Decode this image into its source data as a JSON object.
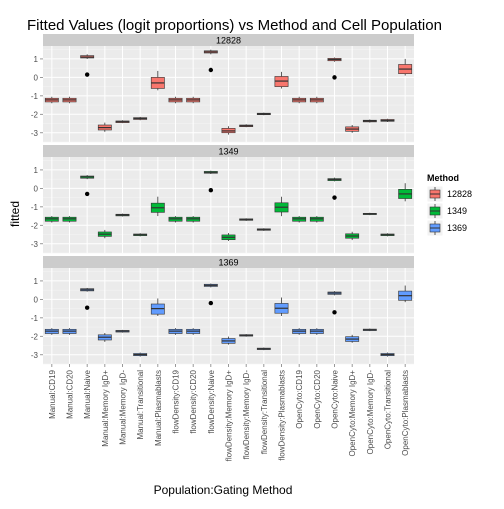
{
  "chart_data": {
    "type": "boxplot",
    "title": "Fitted Values (logit proportions) vs Method and Cell Population",
    "xlabel": "Population:Gating Method",
    "ylabel": "fitted",
    "ylim": [
      -3.5,
      1.7
    ],
    "yticks": [
      -3,
      -2,
      -1,
      0,
      1
    ],
    "grid": true,
    "legend_position": "right",
    "legend_title": "Method",
    "legend": [
      {
        "name": "12828",
        "color": "#F8766D"
      },
      {
        "name": "1349",
        "color": "#00BA38"
      },
      {
        "name": "1369",
        "color": "#619CFF"
      }
    ],
    "categories": [
      "Manual:CD19",
      "Manual:CD20",
      "Manual:Naive",
      "Manual:Memory IgD+",
      "Manual:Memory IgD-",
      "Manual:Transitional",
      "Manual:Plasmablasts",
      "flowDensity:CD19",
      "flowDensity:CD20",
      "flowDensity:Naive",
      "flowDensity:Memory IgD+",
      "flowDensity:Memory IgD-",
      "flowDensity:Transitional",
      "flowDensity:Plasmablasts",
      "OpenCyto:CD19",
      "OpenCyto:CD20",
      "OpenCyto:Naive",
      "OpenCyto:Memory IgD+",
      "OpenCyto:Memory IgD-",
      "OpenCyto:Transitional",
      "OpenCyto:Plasmablasts"
    ],
    "panels": [
      {
        "name": "12828",
        "boxes": [
          {
            "lo": -1.4,
            "q1": -1.33,
            "med": -1.22,
            "q3": -1.13,
            "hi": -1.05
          },
          {
            "lo": -1.4,
            "q1": -1.33,
            "med": -1.22,
            "q3": -1.13,
            "hi": -1.05
          },
          {
            "lo": 1.0,
            "q1": 1.05,
            "med": 1.1,
            "q3": 1.18,
            "hi": 1.25
          },
          {
            "lo": -2.95,
            "q1": -2.85,
            "med": -2.72,
            "q3": -2.58,
            "hi": -2.45
          },
          {
            "lo": -2.48,
            "q1": -2.45,
            "med": -2.4,
            "q3": -2.36,
            "hi": -2.32
          },
          {
            "lo": -2.32,
            "q1": -2.28,
            "med": -2.23,
            "q3": -2.18,
            "hi": -2.14
          },
          {
            "lo": -0.7,
            "q1": -0.6,
            "med": -0.3,
            "q3": 0.0,
            "hi": 0.35
          },
          {
            "lo": -1.4,
            "q1": -1.33,
            "med": -1.22,
            "q3": -1.13,
            "hi": -1.05
          },
          {
            "lo": -1.4,
            "q1": -1.33,
            "med": -1.22,
            "q3": -1.13,
            "hi": -1.05
          },
          {
            "lo": 1.25,
            "q1": 1.32,
            "med": 1.38,
            "q3": 1.44,
            "hi": 1.5
          },
          {
            "lo": -3.1,
            "q1": -3.0,
            "med": -2.9,
            "q3": -2.76,
            "hi": -2.65
          },
          {
            "lo": -2.7,
            "q1": -2.67,
            "med": -2.62,
            "q3": -2.58,
            "hi": -2.54
          },
          {
            "lo": -2.05,
            "q1": -2.02,
            "med": -1.98,
            "q3": -1.94,
            "hi": -1.91
          },
          {
            "lo": -0.6,
            "q1": -0.5,
            "med": -0.2,
            "q3": 0.05,
            "hi": 0.3
          },
          {
            "lo": -1.4,
            "q1": -1.33,
            "med": -1.22,
            "q3": -1.13,
            "hi": -1.05
          },
          {
            "lo": -1.4,
            "q1": -1.33,
            "med": -1.22,
            "q3": -1.13,
            "hi": -1.05
          },
          {
            "lo": 0.85,
            "q1": 0.9,
            "med": 0.97,
            "q3": 1.03,
            "hi": 1.08
          },
          {
            "lo": -3.0,
            "q1": -2.92,
            "med": -2.8,
            "q3": -2.68,
            "hi": -2.58
          },
          {
            "lo": -2.45,
            "q1": -2.41,
            "med": -2.36,
            "q3": -2.32,
            "hi": -2.28
          },
          {
            "lo": -2.42,
            "q1": -2.38,
            "med": -2.33,
            "q3": -2.28,
            "hi": -2.24
          },
          {
            "lo": 0.1,
            "q1": 0.2,
            "med": 0.45,
            "q3": 0.7,
            "hi": 1.0
          }
        ],
        "points": [
          {
            "cat": 3,
            "y": 0.15
          },
          {
            "cat": 10,
            "y": 0.4
          },
          {
            "cat": 17,
            "y": 0.0
          }
        ]
      },
      {
        "name": "1349",
        "boxes": [
          {
            "lo": -1.85,
            "q1": -1.78,
            "med": -1.65,
            "q3": -1.56,
            "hi": -1.5
          },
          {
            "lo": -1.85,
            "q1": -1.78,
            "med": -1.65,
            "q3": -1.56,
            "hi": -1.5
          },
          {
            "lo": 0.5,
            "q1": 0.55,
            "med": 0.62,
            "q3": 0.67,
            "hi": 0.72
          },
          {
            "lo": -2.7,
            "q1": -2.6,
            "med": -2.48,
            "q3": -2.36,
            "hi": -2.25
          },
          {
            "lo": -1.52,
            "q1": -1.49,
            "med": -1.44,
            "q3": -1.4,
            "hi": -1.37
          },
          {
            "lo": -2.6,
            "q1": -2.56,
            "med": -2.51,
            "q3": -2.47,
            "hi": -2.43
          },
          {
            "lo": -1.5,
            "q1": -1.3,
            "med": -1.05,
            "q3": -0.8,
            "hi": -0.45
          },
          {
            "lo": -1.85,
            "q1": -1.78,
            "med": -1.65,
            "q3": -1.56,
            "hi": -1.5
          },
          {
            "lo": -1.85,
            "q1": -1.78,
            "med": -1.65,
            "q3": -1.56,
            "hi": -1.5
          },
          {
            "lo": 0.78,
            "q1": 0.82,
            "med": 0.87,
            "q3": 0.92,
            "hi": 0.96
          },
          {
            "lo": -2.85,
            "q1": -2.78,
            "med": -2.65,
            "q3": -2.52,
            "hi": -2.42
          },
          {
            "lo": -1.76,
            "q1": -1.73,
            "med": -1.69,
            "q3": -1.65,
            "hi": -1.62
          },
          {
            "lo": -2.3,
            "q1": -2.27,
            "med": -2.23,
            "q3": -2.19,
            "hi": -2.16
          },
          {
            "lo": -1.5,
            "q1": -1.28,
            "med": -1.02,
            "q3": -0.78,
            "hi": -0.45
          },
          {
            "lo": -1.85,
            "q1": -1.78,
            "med": -1.65,
            "q3": -1.56,
            "hi": -1.5
          },
          {
            "lo": -1.85,
            "q1": -1.78,
            "med": -1.65,
            "q3": -1.56,
            "hi": -1.5
          },
          {
            "lo": 0.38,
            "q1": 0.42,
            "med": 0.48,
            "q3": 0.53,
            "hi": 0.58
          },
          {
            "lo": -2.8,
            "q1": -2.7,
            "med": -2.58,
            "q3": -2.46,
            "hi": -2.35
          },
          {
            "lo": -1.45,
            "q1": -1.42,
            "med": -1.38,
            "q3": -1.35,
            "hi": -1.32
          },
          {
            "lo": -2.6,
            "q1": -2.56,
            "med": -2.51,
            "q3": -2.47,
            "hi": -2.43
          },
          {
            "lo": -0.7,
            "q1": -0.55,
            "med": -0.3,
            "q3": -0.05,
            "hi": 0.28
          }
        ],
        "points": [
          {
            "cat": 3,
            "y": -0.3
          },
          {
            "cat": 10,
            "y": -0.1
          },
          {
            "cat": 17,
            "y": -0.5
          }
        ]
      },
      {
        "name": "1369",
        "boxes": [
          {
            "lo": -1.92,
            "q1": -1.85,
            "med": -1.72,
            "q3": -1.62,
            "hi": -1.56
          },
          {
            "lo": -1.92,
            "q1": -1.85,
            "med": -1.72,
            "q3": -1.62,
            "hi": -1.56
          },
          {
            "lo": 0.42,
            "q1": 0.46,
            "med": 0.52,
            "q3": 0.58,
            "hi": 0.62
          },
          {
            "lo": -2.3,
            "q1": -2.2,
            "med": -2.05,
            "q3": -1.92,
            "hi": -1.82
          },
          {
            "lo": -1.8,
            "q1": -1.77,
            "med": -1.72,
            "q3": -1.68,
            "hi": -1.65
          },
          {
            "lo": -3.1,
            "q1": -3.05,
            "med": -2.99,
            "q3": -2.93,
            "hi": -2.88
          },
          {
            "lo": -0.9,
            "q1": -0.8,
            "med": -0.5,
            "q3": -0.25,
            "hi": 0.05
          },
          {
            "lo": -1.92,
            "q1": -1.85,
            "med": -1.72,
            "q3": -1.62,
            "hi": -1.56
          },
          {
            "lo": -1.92,
            "q1": -1.85,
            "med": -1.72,
            "q3": -1.62,
            "hi": -1.56
          },
          {
            "lo": 0.65,
            "q1": 0.7,
            "med": 0.76,
            "q3": 0.82,
            "hi": 0.86
          },
          {
            "lo": -2.45,
            "q1": -2.38,
            "med": -2.25,
            "q3": -2.12,
            "hi": -2.02
          },
          {
            "lo": -2.02,
            "q1": -1.99,
            "med": -1.95,
            "q3": -1.91,
            "hi": -1.88
          },
          {
            "lo": -2.75,
            "q1": -2.72,
            "med": -2.68,
            "q3": -2.64,
            "hi": -2.61
          },
          {
            "lo": -0.9,
            "q1": -0.75,
            "med": -0.48,
            "q3": -0.22,
            "hi": 0.1
          },
          {
            "lo": -1.92,
            "q1": -1.85,
            "med": -1.72,
            "q3": -1.62,
            "hi": -1.56
          },
          {
            "lo": -1.92,
            "q1": -1.85,
            "med": -1.72,
            "q3": -1.62,
            "hi": -1.56
          },
          {
            "lo": 0.22,
            "q1": 0.27,
            "med": 0.34,
            "q3": 0.4,
            "hi": 0.45
          },
          {
            "lo": -2.35,
            "q1": -2.28,
            "med": -2.15,
            "q3": -2.02,
            "hi": -1.92
          },
          {
            "lo": -1.72,
            "q1": -1.69,
            "med": -1.65,
            "q3": -1.61,
            "hi": -1.58
          },
          {
            "lo": -3.1,
            "q1": -3.05,
            "med": -2.99,
            "q3": -2.93,
            "hi": -2.88
          },
          {
            "lo": -0.15,
            "q1": -0.05,
            "med": 0.2,
            "q3": 0.45,
            "hi": 0.75
          }
        ],
        "points": [
          {
            "cat": 3,
            "y": -0.45
          },
          {
            "cat": 10,
            "y": -0.2
          },
          {
            "cat": 17,
            "y": -0.7
          }
        ]
      }
    ]
  }
}
